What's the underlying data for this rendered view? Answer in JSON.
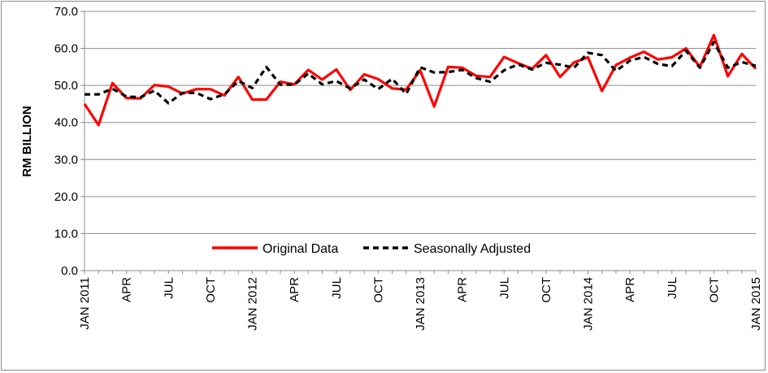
{
  "chart_data": {
    "type": "line",
    "title": "",
    "ylabel": "RM BILLION",
    "xlabel": "",
    "ylim": [
      0,
      70
    ],
    "y_ticks": [
      "0.0",
      "10.0",
      "20.0",
      "30.0",
      "40.0",
      "50.0",
      "60.0",
      "70.0"
    ],
    "y_tick_values": [
      0,
      10,
      20,
      30,
      40,
      50,
      60,
      70
    ],
    "grid": "horizontal",
    "legend_position": "bottom-center",
    "x_tick_labels": [
      "JAN 2011",
      "APR",
      "JUL",
      "OCT",
      "JAN 2012",
      "APR",
      "JUL",
      "OCT",
      "JAN 2013",
      "APR",
      "JUL",
      "OCT",
      "JAN 2014",
      "APR",
      "JUL",
      "OCT",
      "JAN 2015"
    ],
    "x_tick_months": [
      0,
      3,
      6,
      9,
      12,
      15,
      18,
      21,
      24,
      27,
      30,
      33,
      36,
      39,
      42,
      45,
      48
    ],
    "series": [
      {
        "name": "Original Data",
        "color": "#ff0000",
        "style": "solid",
        "values": [
          45.0,
          39.3,
          50.6,
          46.6,
          46.5,
          50.1,
          49.7,
          47.8,
          49.0,
          49.0,
          47.3,
          52.3,
          46.2,
          46.2,
          51.0,
          50.3,
          54.2,
          51.6,
          54.3,
          48.8,
          53.0,
          51.7,
          49.2,
          48.9,
          54.1,
          44.3,
          55.0,
          54.8,
          52.6,
          52.3,
          57.7,
          56.0,
          54.5,
          58.2,
          52.3,
          56.2,
          57.6,
          48.5,
          55.5,
          57.5,
          59.1,
          57.0,
          57.6,
          60.0,
          55.0,
          63.6,
          52.5,
          58.5,
          54.5
        ]
      },
      {
        "name": "Seasonally Adjusted",
        "color": "#000000",
        "style": "dashed",
        "values": [
          47.6,
          47.6,
          49.1,
          47.0,
          46.8,
          48.6,
          45.2,
          48.0,
          48.0,
          46.3,
          47.6,
          51.2,
          49.3,
          55.0,
          50.2,
          50.2,
          53.2,
          50.3,
          51.2,
          49.2,
          51.6,
          49.0,
          51.8,
          47.7,
          54.9,
          53.5,
          53.6,
          54.2,
          52.0,
          51.0,
          54.1,
          55.7,
          54.3,
          56.1,
          55.6,
          54.8,
          58.8,
          58.2,
          53.9,
          56.7,
          57.7,
          55.8,
          55.2,
          59.4,
          54.8,
          61.7,
          54.8,
          56.3,
          55.3
        ]
      }
    ]
  }
}
